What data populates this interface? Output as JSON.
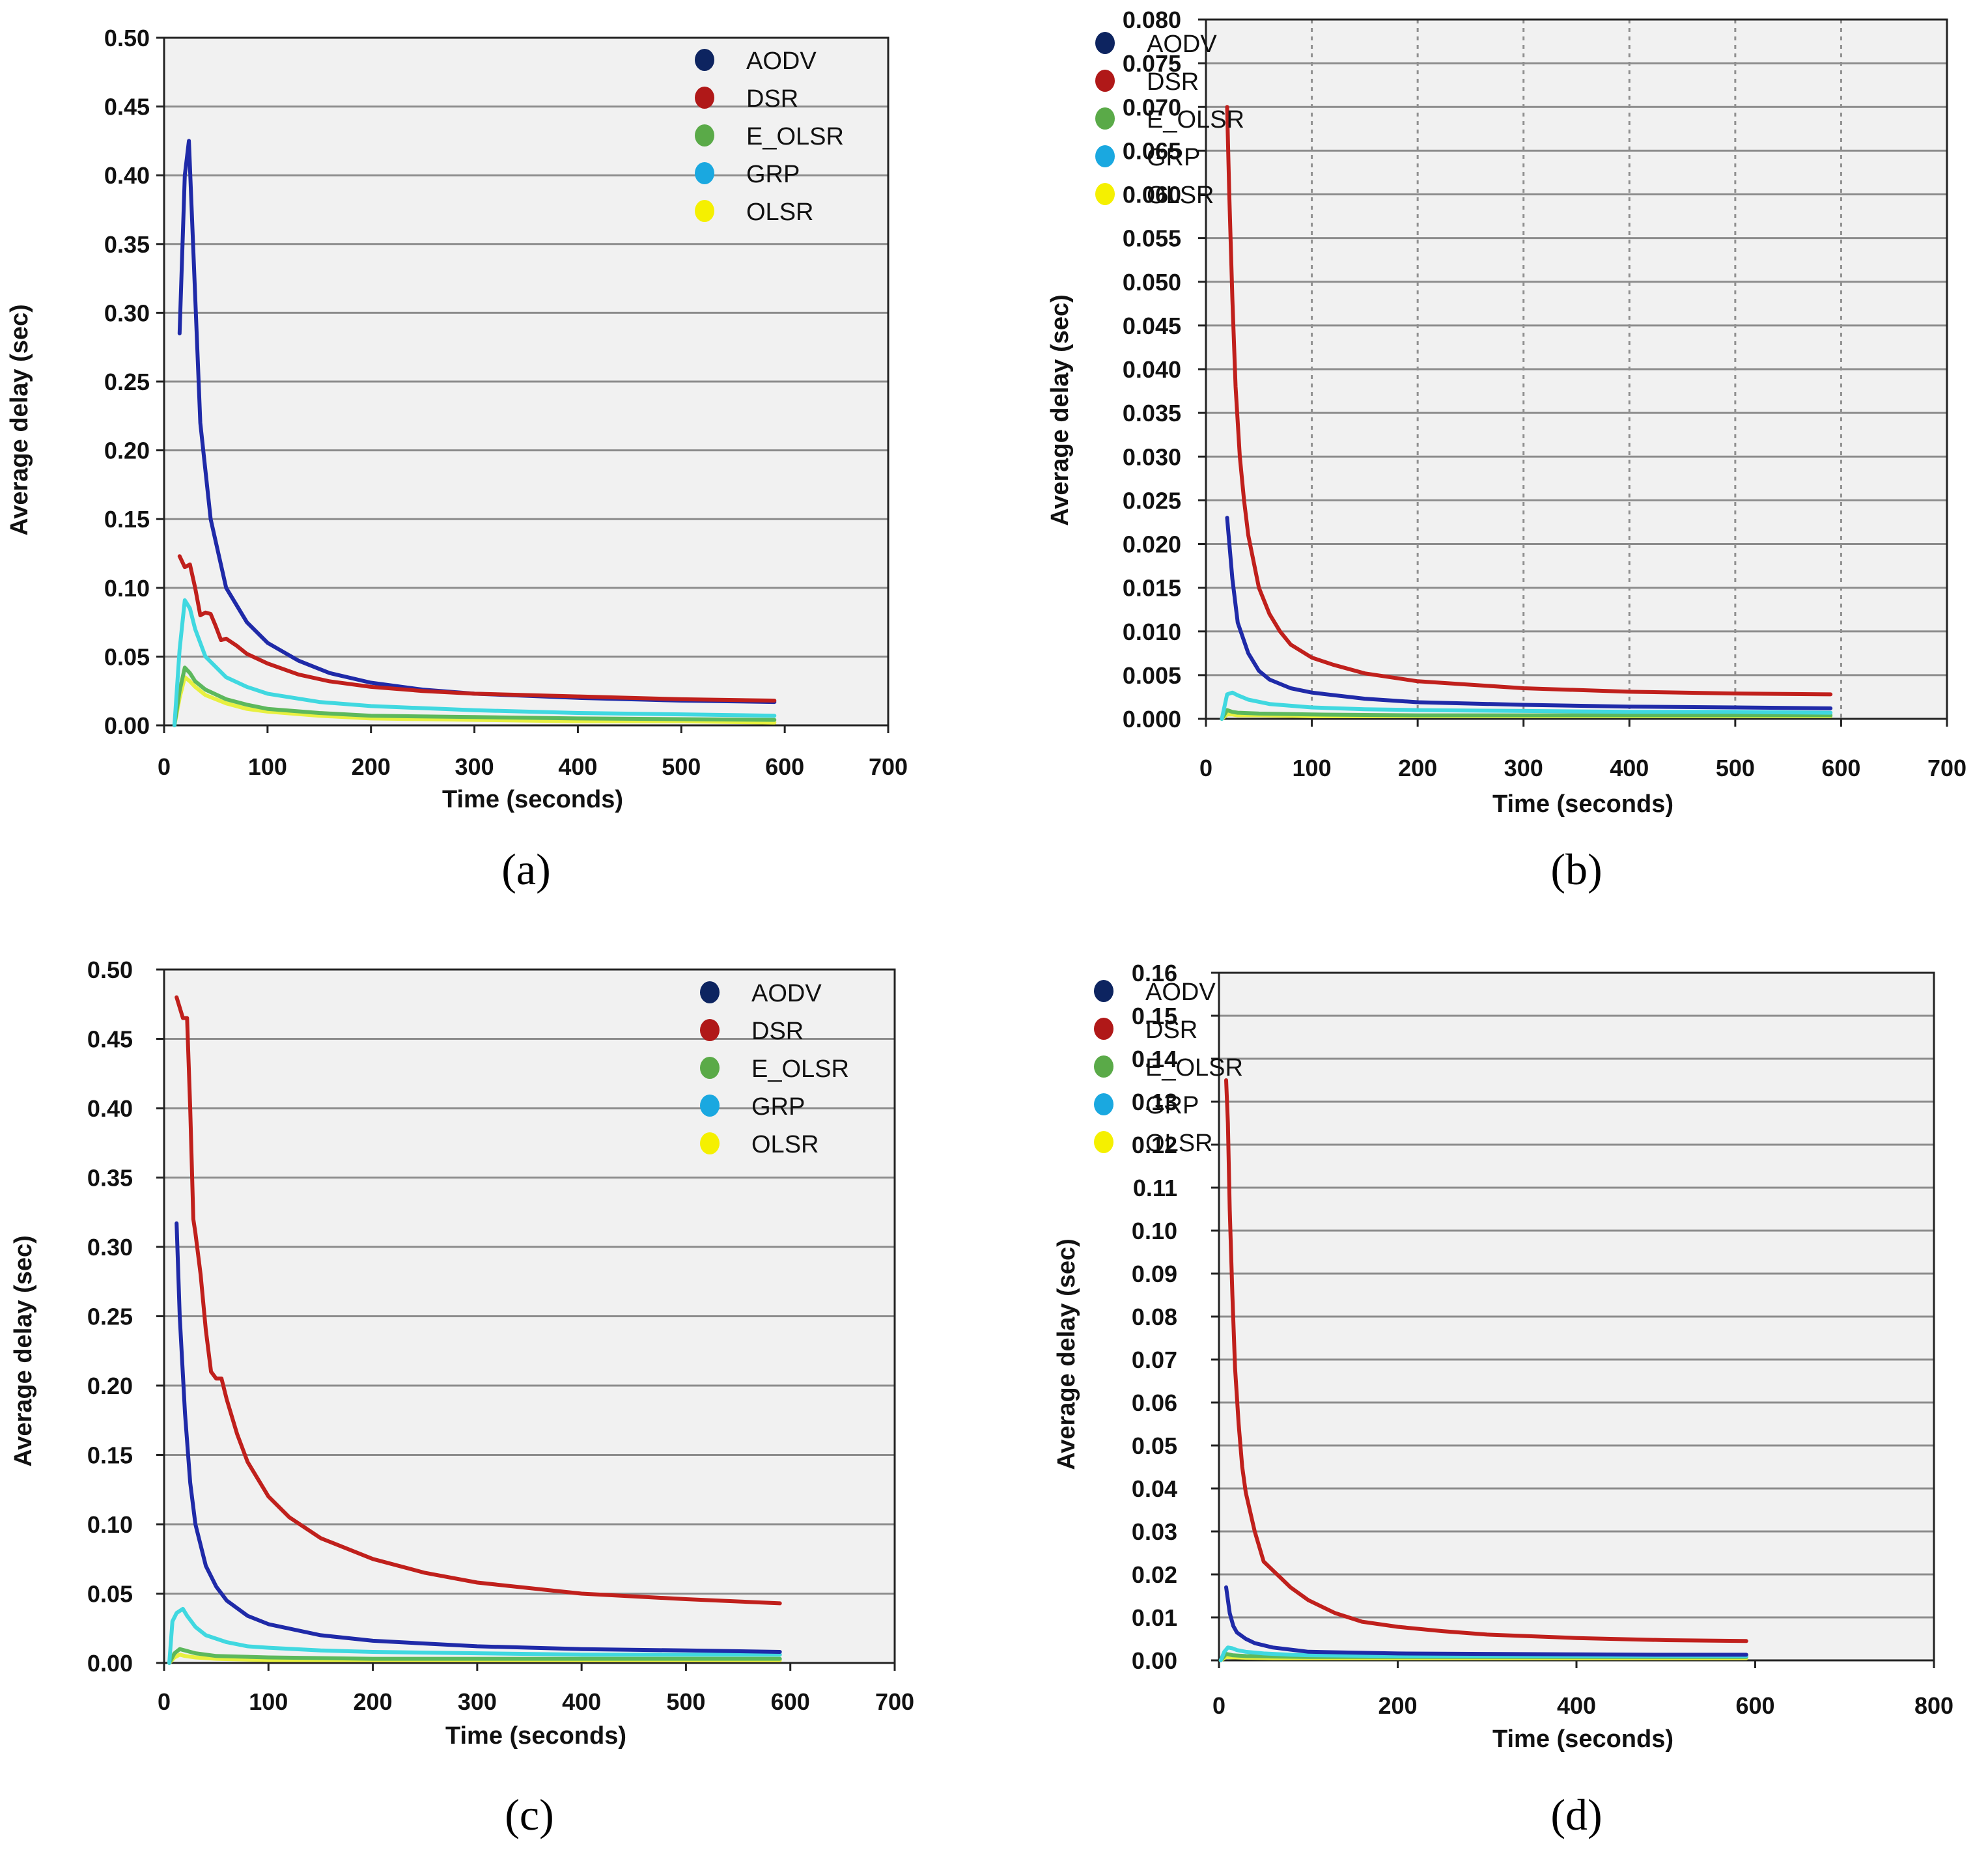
{
  "chart_data": [
    {
      "type": "line",
      "panel": "(a)",
      "xlabel": "Time (seconds)",
      "ylabel": "Average  delay  (sec)",
      "xlim": [
        0,
        700
      ],
      "ylim": [
        0,
        0.5
      ],
      "xticks": [
        0,
        100,
        200,
        300,
        400,
        500,
        600,
        700
      ],
      "yticks": [
        0.0,
        0.05,
        0.1,
        0.15,
        0.2,
        0.25,
        0.3,
        0.35,
        0.4,
        0.45,
        0.5
      ],
      "ytick_labels": [
        "0.00",
        "0.05",
        "0.10",
        "0.15",
        "0.20",
        "0.25",
        "0.30",
        "0.35",
        "0.40",
        "0.45",
        "0.50"
      ],
      "vgrid": false,
      "legend": "top-right",
      "series": [
        {
          "name": "AODV",
          "color": "#1f2aa8",
          "marker": "#0d2460",
          "x": [
            15,
            20,
            24,
            28,
            35,
            45,
            60,
            80,
            100,
            130,
            160,
            200,
            250,
            300,
            400,
            500,
            590
          ],
          "y": [
            0.285,
            0.4,
            0.425,
            0.35,
            0.22,
            0.15,
            0.1,
            0.075,
            0.06,
            0.047,
            0.038,
            0.031,
            0.026,
            0.023,
            0.02,
            0.018,
            0.017
          ]
        },
        {
          "name": "DSR",
          "color": "#c0201c",
          "marker": "#b01818",
          "x": [
            15,
            20,
            25,
            30,
            35,
            40,
            45,
            50,
            55,
            60,
            70,
            80,
            100,
            130,
            160,
            200,
            250,
            300,
            400,
            500,
            590
          ],
          "y": [
            0.123,
            0.115,
            0.117,
            0.1,
            0.08,
            0.082,
            0.081,
            0.072,
            0.062,
            0.063,
            0.058,
            0.052,
            0.045,
            0.037,
            0.032,
            0.028,
            0.025,
            0.023,
            0.021,
            0.019,
            0.018
          ]
        },
        {
          "name": "E_OLSR",
          "color": "#5cb85c",
          "marker": "#5aaa48",
          "x": [
            10,
            15,
            20,
            25,
            30,
            40,
            60,
            80,
            100,
            150,
            200,
            300,
            400,
            500,
            590
          ],
          "y": [
            0.0,
            0.025,
            0.042,
            0.038,
            0.032,
            0.026,
            0.019,
            0.015,
            0.012,
            0.009,
            0.007,
            0.006,
            0.005,
            0.0045,
            0.004
          ]
        },
        {
          "name": "GRP",
          "color": "#40d8e0",
          "marker": "#1aa8e0",
          "x": [
            10,
            15,
            20,
            25,
            30,
            40,
            60,
            80,
            100,
            150,
            200,
            300,
            400,
            500,
            590
          ],
          "y": [
            0.0,
            0.055,
            0.091,
            0.085,
            0.07,
            0.05,
            0.035,
            0.028,
            0.023,
            0.017,
            0.014,
            0.011,
            0.009,
            0.008,
            0.007
          ]
        },
        {
          "name": "OLSR",
          "color": "#e8f040",
          "marker": "#f5f000",
          "x": [
            10,
            15,
            20,
            25,
            30,
            40,
            60,
            80,
            100,
            150,
            200,
            300,
            400,
            500,
            590
          ],
          "y": [
            0.0,
            0.02,
            0.035,
            0.032,
            0.028,
            0.022,
            0.016,
            0.012,
            0.01,
            0.007,
            0.005,
            0.004,
            0.003,
            0.003,
            0.002
          ]
        }
      ]
    },
    {
      "type": "line",
      "panel": "(b)",
      "xlabel": "Time (seconds)",
      "ylabel": "Average  delay  (sec)",
      "xlim": [
        0,
        700
      ],
      "ylim": [
        0,
        0.08
      ],
      "xticks": [
        0,
        100,
        200,
        300,
        400,
        500,
        600,
        700
      ],
      "yticks": [
        0.0,
        0.005,
        0.01,
        0.015,
        0.02,
        0.025,
        0.03,
        0.035,
        0.04,
        0.045,
        0.05,
        0.055,
        0.06,
        0.065,
        0.07,
        0.075,
        0.08
      ],
      "ytick_labels": [
        "0.000",
        "0.005",
        "0.010",
        "0.015",
        "0.020",
        "0.025",
        "0.030",
        "0.035",
        "0.040",
        "0.045",
        "0.050",
        "0.055",
        "0.060",
        "0.065",
        "0.070",
        "0.075",
        "0.080"
      ],
      "vgrid": true,
      "legend": "top-right",
      "series": [
        {
          "name": "AODV",
          "color": "#1f2aa8",
          "marker": "#0d2460",
          "x": [
            20,
            25,
            30,
            40,
            50,
            60,
            80,
            100,
            150,
            200,
            300,
            400,
            500,
            590
          ],
          "y": [
            0.023,
            0.016,
            0.011,
            0.0075,
            0.0055,
            0.0045,
            0.0035,
            0.003,
            0.0023,
            0.0019,
            0.0016,
            0.0014,
            0.0013,
            0.0012
          ]
        },
        {
          "name": "DSR",
          "color": "#c0201c",
          "marker": "#b01818",
          "x": [
            20,
            22,
            25,
            28,
            32,
            36,
            40,
            50,
            60,
            70,
            80,
            100,
            120,
            150,
            200,
            250,
            300,
            400,
            500,
            590
          ],
          "y": [
            0.07,
            0.06,
            0.048,
            0.038,
            0.03,
            0.025,
            0.021,
            0.015,
            0.012,
            0.01,
            0.0085,
            0.007,
            0.0062,
            0.0052,
            0.0043,
            0.0039,
            0.0035,
            0.0031,
            0.0029,
            0.0028
          ]
        },
        {
          "name": "E_OLSR",
          "color": "#5cb85c",
          "marker": "#5aaa48",
          "x": [
            15,
            20,
            25,
            30,
            50,
            100,
            200,
            300,
            400,
            500,
            590
          ],
          "y": [
            0.0,
            0.001,
            0.0008,
            0.0007,
            0.0006,
            0.0005,
            0.0004,
            0.0004,
            0.0004,
            0.0004,
            0.0004
          ]
        },
        {
          "name": "GRP",
          "color": "#40d8e0",
          "marker": "#1aa8e0",
          "x": [
            15,
            20,
            25,
            30,
            40,
            60,
            100,
            150,
            200,
            300,
            400,
            500,
            590
          ],
          "y": [
            0.0,
            0.0028,
            0.003,
            0.0027,
            0.0022,
            0.0017,
            0.0013,
            0.0011,
            0.001,
            0.0009,
            0.0008,
            0.0008,
            0.0007
          ]
        },
        {
          "name": "OLSR",
          "color": "#e8f040",
          "marker": "#f5f000",
          "x": [
            15,
            20,
            25,
            30,
            50,
            100,
            200,
            300,
            400,
            500,
            590
          ],
          "y": [
            0.0,
            0.0005,
            0.0005,
            0.0004,
            0.0004,
            0.0003,
            0.0003,
            0.0003,
            0.0003,
            0.0003,
            0.0003
          ]
        }
      ]
    },
    {
      "type": "line",
      "panel": "(c)",
      "xlabel": "Time (seconds)",
      "ylabel": "Average  delay  (sec)",
      "xlim": [
        0,
        700
      ],
      "ylim": [
        0,
        0.5
      ],
      "xticks": [
        0,
        100,
        200,
        300,
        400,
        500,
        600,
        700
      ],
      "yticks": [
        0.0,
        0.05,
        0.1,
        0.15,
        0.2,
        0.25,
        0.3,
        0.35,
        0.4,
        0.45,
        0.5
      ],
      "ytick_labels": [
        "0.00",
        "0.05",
        "0.10",
        "0.15",
        "0.20",
        "0.25",
        "0.30",
        "0.35",
        "0.40",
        "0.45",
        "0.50"
      ],
      "vgrid": false,
      "legend": "top-right",
      "series": [
        {
          "name": "AODV",
          "color": "#1f2aa8",
          "marker": "#0d2460",
          "x": [
            12,
            15,
            20,
            25,
            30,
            40,
            50,
            60,
            80,
            100,
            150,
            200,
            300,
            400,
            500,
            590
          ],
          "y": [
            0.317,
            0.25,
            0.18,
            0.13,
            0.1,
            0.07,
            0.055,
            0.045,
            0.034,
            0.028,
            0.02,
            0.016,
            0.012,
            0.01,
            0.009,
            0.008
          ]
        },
        {
          "name": "DSR",
          "color": "#c0201c",
          "marker": "#b01818",
          "x": [
            12,
            18,
            22,
            25,
            28,
            30,
            35,
            40,
            45,
            50,
            55,
            60,
            70,
            80,
            100,
            120,
            150,
            200,
            250,
            300,
            400,
            500,
            590
          ],
          "y": [
            0.48,
            0.465,
            0.465,
            0.4,
            0.32,
            0.31,
            0.28,
            0.24,
            0.21,
            0.205,
            0.205,
            0.19,
            0.165,
            0.145,
            0.12,
            0.105,
            0.09,
            0.075,
            0.065,
            0.058,
            0.05,
            0.046,
            0.043
          ]
        },
        {
          "name": "E_OLSR",
          "color": "#5cb85c",
          "marker": "#5aaa48",
          "x": [
            5,
            10,
            15,
            20,
            30,
            50,
            100,
            200,
            300,
            400,
            500,
            590
          ],
          "y": [
            0.0,
            0.007,
            0.01,
            0.009,
            0.007,
            0.005,
            0.004,
            0.003,
            0.003,
            0.003,
            0.003,
            0.003
          ]
        },
        {
          "name": "GRP",
          "color": "#40d8e0",
          "marker": "#1aa8e0",
          "x": [
            5,
            8,
            12,
            18,
            22,
            30,
            40,
            60,
            80,
            100,
            150,
            200,
            300,
            400,
            500,
            590
          ],
          "y": [
            0.0,
            0.03,
            0.036,
            0.039,
            0.034,
            0.026,
            0.02,
            0.015,
            0.012,
            0.011,
            0.009,
            0.008,
            0.007,
            0.006,
            0.006,
            0.006
          ]
        },
        {
          "name": "OLSR",
          "color": "#e8f040",
          "marker": "#f5f000",
          "x": [
            5,
            10,
            15,
            20,
            30,
            50,
            100,
            200,
            300,
            400,
            500,
            590
          ],
          "y": [
            0.0,
            0.004,
            0.006,
            0.005,
            0.004,
            0.003,
            0.002,
            0.002,
            0.002,
            0.002,
            0.002,
            0.002
          ]
        }
      ]
    },
    {
      "type": "line",
      "panel": "(d)",
      "xlabel": "Time (seconds)",
      "ylabel": "Average  delay  (sec)",
      "xlim": [
        0,
        800
      ],
      "ylim": [
        0,
        0.16
      ],
      "xticks": [
        0,
        200,
        400,
        600,
        800
      ],
      "yticks": [
        0.0,
        0.01,
        0.02,
        0.03,
        0.04,
        0.05,
        0.06,
        0.07,
        0.08,
        0.09,
        0.1,
        0.11,
        0.12,
        0.13,
        0.14,
        0.15,
        0.16
      ],
      "ytick_labels": [
        "0.00",
        "0.01",
        "0.02",
        "0.03",
        "0.04",
        "0.05",
        "0.06",
        "0.07",
        "0.08",
        "0.09",
        "0.10",
        "0.11",
        "0.12",
        "0.13",
        "0.14",
        "0.15",
        "0.16"
      ],
      "vgrid": false,
      "legend": "top-right",
      "series": [
        {
          "name": "AODV",
          "color": "#1f2aa8",
          "marker": "#0d2460",
          "x": [
            8,
            12,
            16,
            20,
            30,
            40,
            60,
            80,
            100,
            150,
            200,
            300,
            400,
            500,
            590
          ],
          "y": [
            0.017,
            0.011,
            0.008,
            0.0065,
            0.005,
            0.004,
            0.003,
            0.0025,
            0.002,
            0.0018,
            0.0016,
            0.0015,
            0.0014,
            0.0013,
            0.0013
          ]
        },
        {
          "name": "DSR",
          "color": "#c0201c",
          "marker": "#b01818",
          "x": [
            8,
            10,
            12,
            15,
            18,
            22,
            26,
            30,
            40,
            50,
            60,
            70,
            80,
            100,
            130,
            160,
            200,
            250,
            300,
            400,
            500,
            590
          ],
          "y": [
            0.135,
            0.125,
            0.105,
            0.085,
            0.068,
            0.055,
            0.045,
            0.039,
            0.03,
            0.023,
            0.021,
            0.019,
            0.017,
            0.014,
            0.011,
            0.009,
            0.0078,
            0.0068,
            0.006,
            0.0052,
            0.0047,
            0.0045
          ]
        },
        {
          "name": "E_OLSR",
          "color": "#5cb85c",
          "marker": "#5aaa48",
          "x": [
            2,
            8,
            15,
            30,
            60,
            100,
            200,
            300,
            400,
            500,
            590
          ],
          "y": [
            0.0,
            0.0015,
            0.0012,
            0.001,
            0.0009,
            0.0008,
            0.0008,
            0.0008,
            0.0008,
            0.0008,
            0.0008
          ]
        },
        {
          "name": "GRP",
          "color": "#40d8e0",
          "marker": "#1aa8e0",
          "x": [
            2,
            6,
            10,
            15,
            20,
            30,
            50,
            80,
            100,
            200,
            300,
            400,
            500,
            590
          ],
          "y": [
            0.0,
            0.002,
            0.003,
            0.0028,
            0.0024,
            0.002,
            0.0016,
            0.0013,
            0.0012,
            0.001,
            0.001,
            0.001,
            0.001,
            0.001
          ]
        },
        {
          "name": "OLSR",
          "color": "#e8f040",
          "marker": "#f5f000",
          "x": [
            2,
            8,
            15,
            30,
            60,
            100,
            200,
            300,
            400,
            500,
            590
          ],
          "y": [
            0.0,
            0.0008,
            0.0007,
            0.0006,
            0.0005,
            0.0005,
            0.0005,
            0.0005,
            0.0005,
            0.0005,
            0.0005
          ]
        }
      ]
    }
  ]
}
